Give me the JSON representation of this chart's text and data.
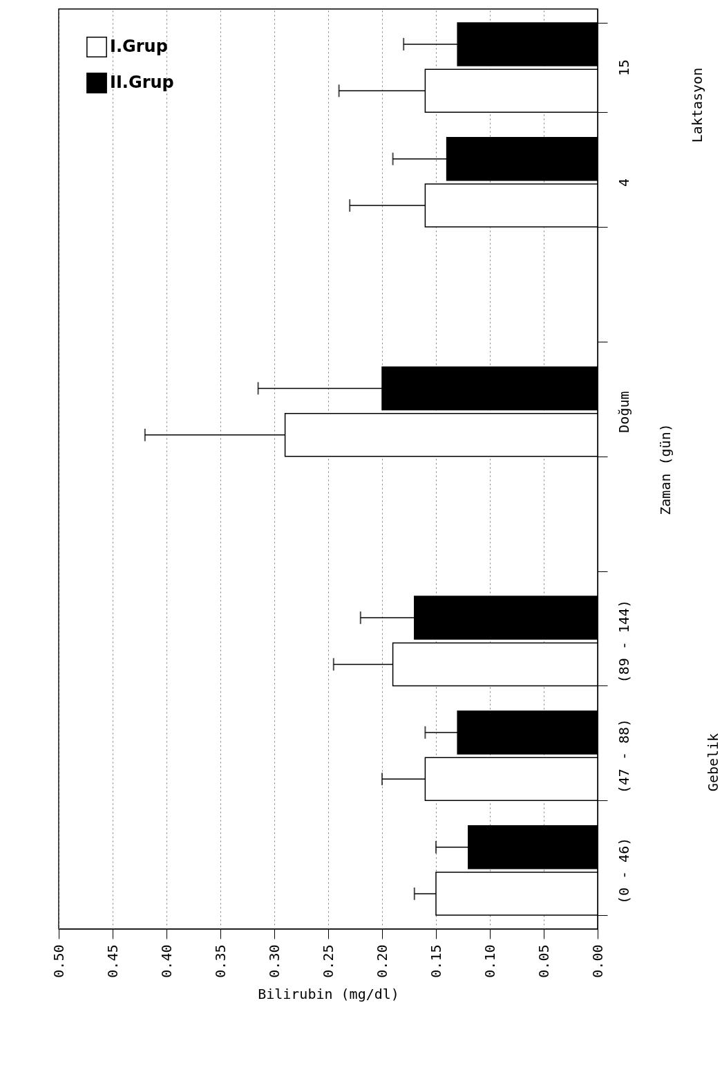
{
  "chart_data": {
    "type": "bar",
    "orientation": "horizontal",
    "xlabel": "Bilirubin (mg/dl)",
    "ylabel": "Zaman (gün)",
    "categories": [
      "15",
      "4",
      null,
      "Doğum",
      null,
      "(89 - 144)",
      "(47 - 88)",
      "(0 - 46)"
    ],
    "series": [
      {
        "name": "I.Grup",
        "color": "#ffffff",
        "values": [
          0.16,
          0.16,
          null,
          0.29,
          null,
          0.19,
          0.16,
          0.15
        ],
        "errors": [
          [
            0.16,
            0.24
          ],
          [
            0.16,
            0.23
          ],
          null,
          [
            0.29,
            0.42
          ],
          null,
          [
            0.19,
            0.245
          ],
          [
            0.16,
            0.2
          ],
          [
            0.15,
            0.17
          ]
        ]
      },
      {
        "name": "II.Grup",
        "color": "#000000",
        "values": [
          0.13,
          0.14,
          null,
          0.2,
          null,
          0.17,
          0.13,
          0.12
        ],
        "errors": [
          [
            0.13,
            0.18
          ],
          [
            0.14,
            0.19
          ],
          null,
          [
            0.2,
            0.315
          ],
          null,
          [
            0.17,
            0.22
          ],
          [
            0.13,
            0.16
          ],
          [
            0.12,
            0.15
          ]
        ]
      }
    ],
    "xlim": [
      0.5,
      0
    ],
    "xticks": [
      {
        "value": 0.5,
        "label": "0.50"
      },
      {
        "value": 0.45,
        "label": "0.45"
      },
      {
        "value": 0.4,
        "label": "0.40"
      },
      {
        "value": 0.35,
        "label": "0.35"
      },
      {
        "value": 0.3,
        "label": "0.30"
      },
      {
        "value": 0.25,
        "label": "0.25"
      },
      {
        "value": 0.2,
        "label": "0.20"
      },
      {
        "value": 0.15,
        "label": "0.15"
      },
      {
        "value": 0.1,
        "label": "0.10"
      },
      {
        "value": 0.05,
        "label": "0.05"
      },
      {
        "value": 0,
        "label": "0.00"
      }
    ],
    "grid": "x",
    "legend": "top left",
    "annotations": [
      "Laktasyon",
      "Gebelik"
    ]
  }
}
